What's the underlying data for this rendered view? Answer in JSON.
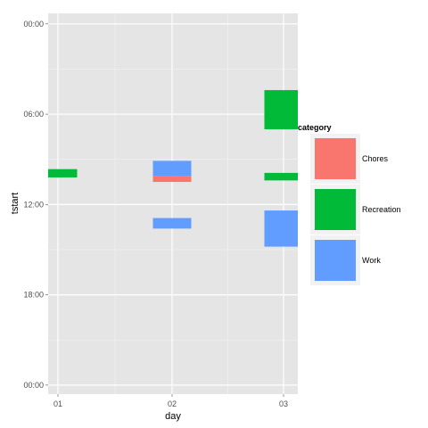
{
  "chart_data": {
    "type": "bar",
    "xlabel": "day",
    "ylabel": "tstart",
    "categories": [
      "01",
      "02",
      "03"
    ],
    "y_ticks": [
      "00:00",
      "06:00",
      "12:00",
      "18:00",
      "00:00"
    ],
    "y_tick_values_hours": [
      24,
      18,
      12,
      6,
      0
    ],
    "ylim_hours": [
      24.7,
      -0.6
    ],
    "legend_title": "category",
    "legend_position": "right",
    "grid": true,
    "series": [
      {
        "name": "Chores",
        "color": "#F8766D"
      },
      {
        "name": "Recreation",
        "color": "#00BA38"
      },
      {
        "name": "Work",
        "color": "#619CFF"
      }
    ],
    "bars": [
      {
        "day": "01",
        "category": "Recreation",
        "start": 13.8,
        "end": 14.35
      },
      {
        "day": "02",
        "category": "Chores",
        "start": 13.5,
        "end": 13.9
      },
      {
        "day": "02",
        "category": "Work",
        "start": 13.9,
        "end": 14.9
      },
      {
        "day": "02",
        "category": "Work",
        "start": 10.4,
        "end": 11.1
      },
      {
        "day": "03",
        "category": "Recreation",
        "start": 17.0,
        "end": 19.6
      },
      {
        "day": "03",
        "category": "Recreation",
        "start": 13.6,
        "end": 14.1
      },
      {
        "day": "03",
        "category": "Work",
        "start": 9.2,
        "end": 11.6
      }
    ]
  }
}
